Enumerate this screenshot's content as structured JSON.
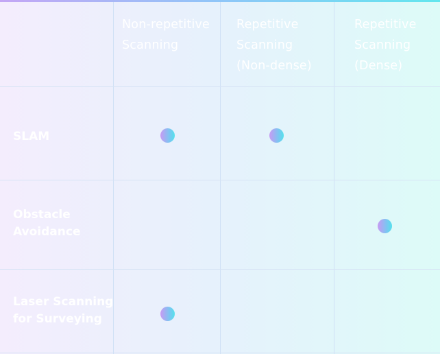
{
  "table": {
    "columns": [
      {
        "label": "Non-repetitive\nScanning"
      },
      {
        "label": "Repetitive\nScanning\n(Non-dense)"
      },
      {
        "label": "Repetitive\nScanning\n(Dense)"
      }
    ],
    "rows": [
      {
        "label": "SLAM",
        "marks": [
          true,
          true,
          false
        ]
      },
      {
        "label": "Obstacle\nAvoidance",
        "marks": [
          false,
          false,
          true
        ]
      },
      {
        "label": "Laser Scanning\nfor Surveying",
        "marks": [
          true,
          false,
          false
        ]
      }
    ]
  },
  "colors": {
    "background_left": "#f4edfd",
    "background_right": "#ddfbf8",
    "accent_purple": "#c89af3",
    "accent_cyan": "#55e1ec",
    "text": "#ffffff"
  }
}
